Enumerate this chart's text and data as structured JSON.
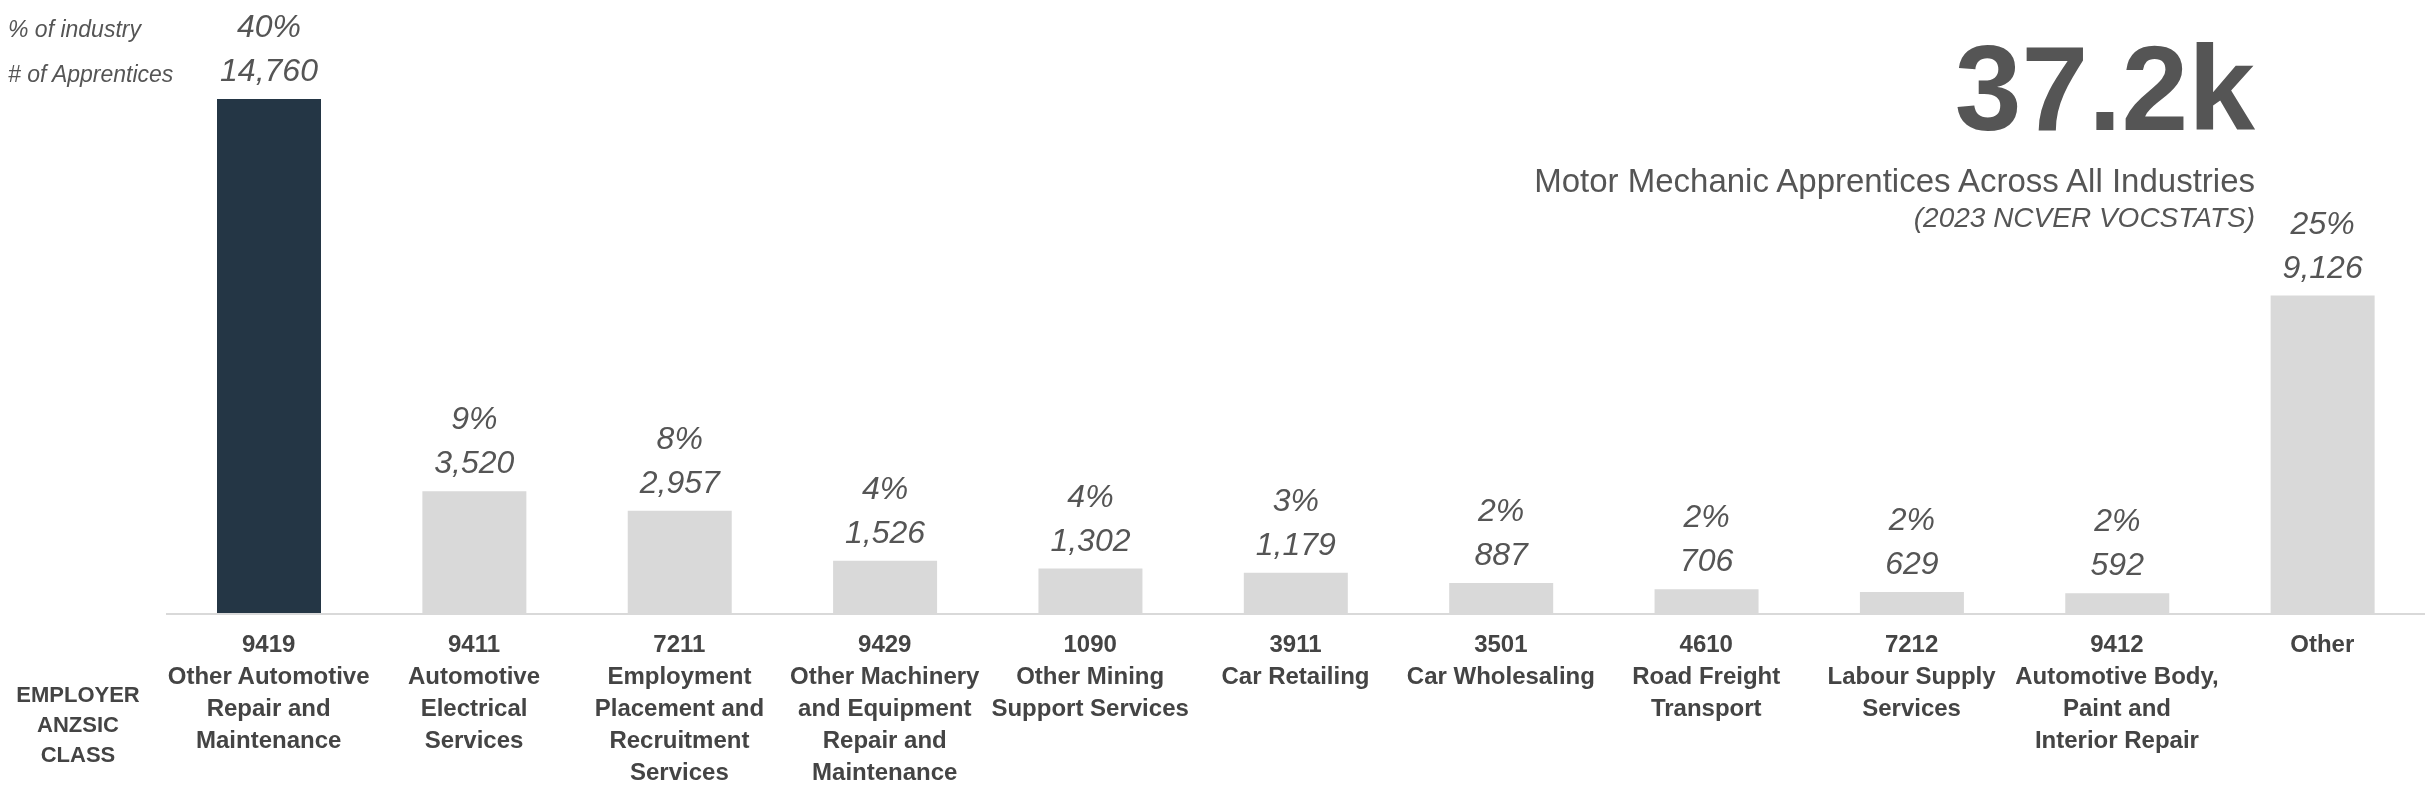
{
  "chart_data": {
    "type": "bar",
    "title": "37.2k",
    "subtitle": "Motor Mechanic Apprentices Across All Industries",
    "xlabel": "EMPLOYER ANZSIC CLASS",
    "annotations": [
      "(2023 NCVER VOCSTATS)",
      "% of industry",
      "# of Apprentices"
    ],
    "categories": [
      "9419 Other Automotive Repair and Maintenance",
      "9411 Automotive Electrical Services",
      "7211 Employment Placement and Recruitment Services",
      "9429 Other Machinery and Equipment Repair and Maintenance",
      "1090 Other Mining Support Services",
      "3911 Car Retailing",
      "3501 Car Wholesaling",
      "4610 Road Freight Transport",
      "7212 Labour Supply Services",
      "9412 Automotive Body, Paint and Interior Repair",
      "Other"
    ],
    "values": [
      14760,
      3520,
      2957,
      1526,
      1302,
      1179,
      887,
      706,
      629,
      592,
      9126
    ],
    "value_labels": [
      "40%\n14,760",
      "9%\n3,520",
      "8%\n2,957",
      "4%\n1,526",
      "4%\n1,302",
      "3%\n1,179",
      "2%\n887",
      "2%\n706",
      "2%\n629",
      "2%\n592",
      "25%\n9,126"
    ],
    "colors": [
      "#243645",
      "#d9d9d9",
      "#d9d9d9",
      "#d9d9d9",
      "#d9d9d9",
      "#d9d9d9",
      "#d9d9d9",
      "#d9d9d9",
      "#d9d9d9",
      "#d9d9d9",
      "#d9d9d9"
    ],
    "ylim": [
      0,
      14760
    ]
  }
}
